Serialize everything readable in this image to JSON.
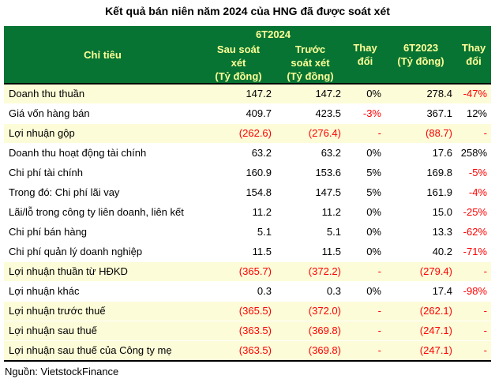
{
  "title": "Kết quả bán niên năm 2024 của HNG đã được soát xét",
  "source": "Nguồn: VietstockFinance",
  "colors": {
    "header_bg": "#077433",
    "header_text": "#FFFF99",
    "highlight_row_bg": "#FCFCD8",
    "negative_text": "#FF0000",
    "text": "#000000",
    "divider": "#000000"
  },
  "table": {
    "header": {
      "col_label": "Chỉ tiêu",
      "group_label": "6T2024",
      "sub_col_after": "Sau soát\nxét\n(Tỷ đồng)",
      "sub_col_before": "Trước\nsoát xét\n(Tỷ đồng)",
      "col_change_1": "Thay\nđổi",
      "col_2023": "6T2023\n(Tỷ đồng)",
      "col_change_2": "Thay\nđổi"
    },
    "rows": [
      {
        "label": "Doanh thu thuần",
        "highlight": true,
        "cells": [
          {
            "t": "147.2"
          },
          {
            "t": "147.2"
          },
          {
            "t": "0%"
          },
          {
            "t": "278.4"
          },
          {
            "t": "-47%",
            "neg": true
          }
        ]
      },
      {
        "label": "Giá vốn hàng bán",
        "highlight": false,
        "cells": [
          {
            "t": "409.7"
          },
          {
            "t": "423.5"
          },
          {
            "t": "-3%",
            "neg": true
          },
          {
            "t": "367.1"
          },
          {
            "t": "12%"
          }
        ]
      },
      {
        "label": "Lợi nhuận gộp",
        "highlight": true,
        "cells": [
          {
            "t": "(262.6)",
            "neg": true
          },
          {
            "t": "(276.4)",
            "neg": true
          },
          {
            "t": "-",
            "neg": true
          },
          {
            "t": "(88.7)",
            "neg": true
          },
          {
            "t": "-",
            "neg": true
          }
        ]
      },
      {
        "label": "Doanh thu hoạt động tài chính",
        "highlight": false,
        "cells": [
          {
            "t": "63.2"
          },
          {
            "t": "63.2"
          },
          {
            "t": "0%"
          },
          {
            "t": "17.6"
          },
          {
            "t": "258%"
          }
        ]
      },
      {
        "label": "Chi phí tài chính",
        "highlight": false,
        "cells": [
          {
            "t": "160.9"
          },
          {
            "t": "153.6"
          },
          {
            "t": "5%"
          },
          {
            "t": "169.8"
          },
          {
            "t": "-5%",
            "neg": true
          }
        ]
      },
      {
        "label": "Trong đó: Chi phí lãi vay",
        "highlight": false,
        "cells": [
          {
            "t": "154.8"
          },
          {
            "t": "147.5"
          },
          {
            "t": "5%"
          },
          {
            "t": "161.9"
          },
          {
            "t": "-4%",
            "neg": true
          }
        ]
      },
      {
        "label": "Lãi/lỗ trong công ty liên doanh, liên kết",
        "highlight": false,
        "cells": [
          {
            "t": "11.2"
          },
          {
            "t": "11.2"
          },
          {
            "t": "0%"
          },
          {
            "t": "15.0"
          },
          {
            "t": "-25%",
            "neg": true
          }
        ]
      },
      {
        "label": "Chi phí bán hàng",
        "highlight": false,
        "cells": [
          {
            "t": "5.1"
          },
          {
            "t": "5.1"
          },
          {
            "t": "0%"
          },
          {
            "t": "13.3"
          },
          {
            "t": "-62%",
            "neg": true
          }
        ]
      },
      {
        "label": "Chi phí quản lý doanh nghiệp",
        "highlight": false,
        "cells": [
          {
            "t": "11.5"
          },
          {
            "t": "11.5"
          },
          {
            "t": "0%"
          },
          {
            "t": "40.2"
          },
          {
            "t": "-71%",
            "neg": true
          }
        ]
      },
      {
        "label": "Lợi nhuận thuần từ HĐKD",
        "highlight": true,
        "cells": [
          {
            "t": "(365.7)",
            "neg": true
          },
          {
            "t": "(372.2)",
            "neg": true
          },
          {
            "t": "-",
            "neg": true
          },
          {
            "t": "(279.4)",
            "neg": true
          },
          {
            "t": "-",
            "neg": true
          }
        ]
      },
      {
        "label": "Lợi nhuận khác",
        "highlight": false,
        "cells": [
          {
            "t": "0.3"
          },
          {
            "t": "0.3"
          },
          {
            "t": "0%"
          },
          {
            "t": "17.4"
          },
          {
            "t": "-98%",
            "neg": true
          }
        ]
      },
      {
        "label": "Lợi nhuận trước thuế",
        "highlight": true,
        "cells": [
          {
            "t": "(365.5)",
            "neg": true
          },
          {
            "t": "(372.0)",
            "neg": true
          },
          {
            "t": "-",
            "neg": true
          },
          {
            "t": "(262.1)",
            "neg": true
          },
          {
            "t": "-",
            "neg": true
          }
        ]
      },
      {
        "label": "Lợi nhuận sau thuế",
        "highlight": true,
        "cells": [
          {
            "t": "(363.5)",
            "neg": true
          },
          {
            "t": "(369.8)",
            "neg": true
          },
          {
            "t": "-",
            "neg": true
          },
          {
            "t": "(247.1)",
            "neg": true
          },
          {
            "t": "-",
            "neg": true
          }
        ]
      },
      {
        "label": "Lợi nhuận sau thuế của Công ty mẹ",
        "highlight": true,
        "cells": [
          {
            "t": "(363.5)",
            "neg": true
          },
          {
            "t": "(369.8)",
            "neg": true
          },
          {
            "t": "-",
            "neg": true
          },
          {
            "t": "(247.1)",
            "neg": true
          },
          {
            "t": "-",
            "neg": true
          }
        ]
      }
    ]
  },
  "chart_data": {
    "type": "table",
    "title": "Kết quả bán niên năm 2024 của HNG đã được soát xét",
    "unit": "Tỷ đồng",
    "source": "Nguồn: VietstockFinance",
    "columns": [
      "Chỉ tiêu",
      "6T2024 Sau soát xét (Tỷ đồng)",
      "6T2024 Trước soát xét (Tỷ đồng)",
      "Thay đổi",
      "6T2023 (Tỷ đồng)",
      "Thay đổi"
    ],
    "rows": [
      [
        "Doanh thu thuần",
        147.2,
        147.2,
        "0%",
        278.4,
        "-47%"
      ],
      [
        "Giá vốn hàng bán",
        409.7,
        423.5,
        "-3%",
        367.1,
        "12%"
      ],
      [
        "Lợi nhuận gộp",
        -262.6,
        -276.4,
        null,
        -88.7,
        null
      ],
      [
        "Doanh thu hoạt động tài chính",
        63.2,
        63.2,
        "0%",
        17.6,
        "258%"
      ],
      [
        "Chi phí tài chính",
        160.9,
        153.6,
        "5%",
        169.8,
        "-5%"
      ],
      [
        "Trong đó: Chi phí lãi vay",
        154.8,
        147.5,
        "5%",
        161.9,
        "-4%"
      ],
      [
        "Lãi/lỗ trong công ty liên doanh, liên kết",
        11.2,
        11.2,
        "0%",
        15.0,
        "-25%"
      ],
      [
        "Chi phí bán hàng",
        5.1,
        5.1,
        "0%",
        13.3,
        "-62%"
      ],
      [
        "Chi phí quản lý doanh nghiệp",
        11.5,
        11.5,
        "0%",
        40.2,
        "-71%"
      ],
      [
        "Lợi nhuận thuần từ HĐKD",
        -365.7,
        -372.2,
        null,
        -279.4,
        null
      ],
      [
        "Lợi nhuận khác",
        0.3,
        0.3,
        "0%",
        17.4,
        "-98%"
      ],
      [
        "Lợi nhuận trước thuế",
        -365.5,
        -372.0,
        null,
        -262.1,
        null
      ],
      [
        "Lợi nhuận sau thuế",
        -363.5,
        -369.8,
        null,
        -247.1,
        null
      ],
      [
        "Lợi nhuận sau thuế của Công ty mẹ",
        -363.5,
        -369.8,
        null,
        -247.1,
        null
      ]
    ]
  }
}
